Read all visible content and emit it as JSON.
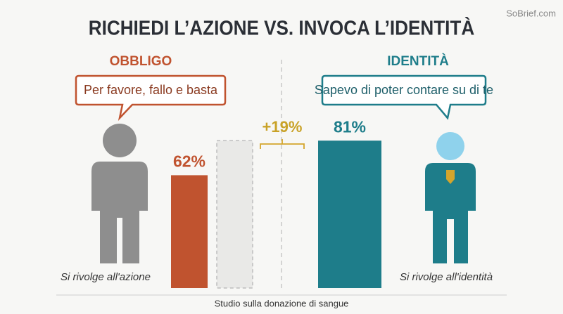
{
  "watermark": "SoBrief.com",
  "chart_data": {
    "type": "bar",
    "title": "RICHIEDI L’AZIONE VS. INVOCA L’IDENTITÀ",
    "group_titles": [
      "OBBLIGO",
      "IDENTITÀ"
    ],
    "speech": [
      "Per favore, fallo e basta",
      "Sapevo di poter contare su di te"
    ],
    "categories": [
      "Si rivolge all'azione",
      "Si rivolge all'identità"
    ],
    "values": [
      62,
      81
    ],
    "value_labels": [
      "62%",
      "81%"
    ],
    "colors": [
      "#c0532f",
      "#1e7d8a"
    ],
    "annotation": "+19%",
    "ylim": [
      0,
      100
    ],
    "caption": "Studio sulla donazione di sangue"
  }
}
